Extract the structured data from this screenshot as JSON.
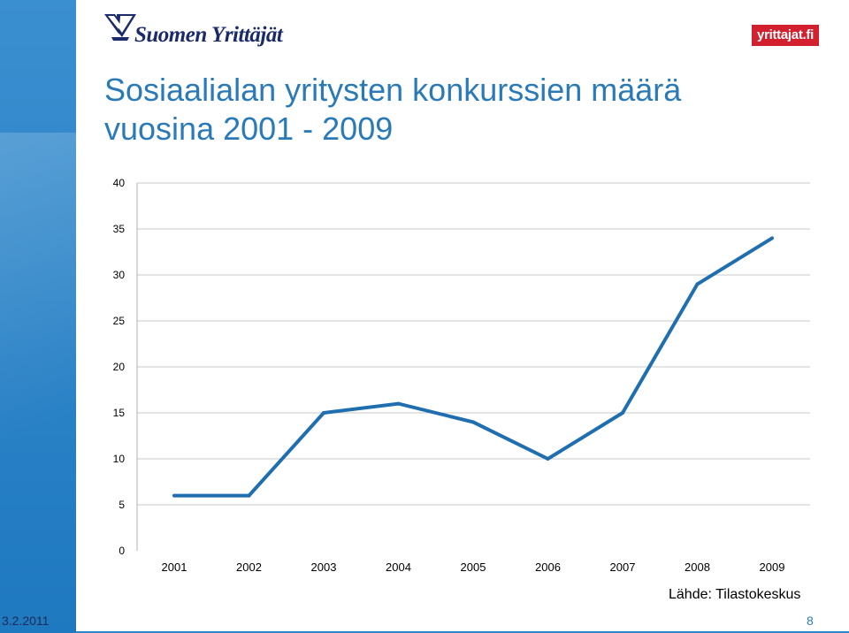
{
  "header": {
    "logo_text": "Suomen Yrittäjät",
    "badge_text": "yrittajat.fi"
  },
  "slide": {
    "title_line1": "Sosiaalialan yritysten konkurssien määrä",
    "title_line2": "vuosina 2001 - 2009",
    "source": "Lähde: Tilastokeskus"
  },
  "footer": {
    "date": "3.2.2011",
    "page_number": "8"
  },
  "chart_data": {
    "type": "line",
    "categories": [
      "2001",
      "2002",
      "2003",
      "2004",
      "2005",
      "2006",
      "2007",
      "2008",
      "2009"
    ],
    "series": [
      {
        "values": [
          6,
          6,
          15,
          16,
          14,
          10,
          15,
          29,
          34
        ],
        "color": "#1f6fb0"
      }
    ],
    "yticks": [
      0,
      5,
      10,
      15,
      20,
      25,
      30,
      35,
      40
    ],
    "ylim": [
      0,
      40
    ],
    "grid": true,
    "title": "",
    "xlabel": "",
    "ylabel": ""
  }
}
